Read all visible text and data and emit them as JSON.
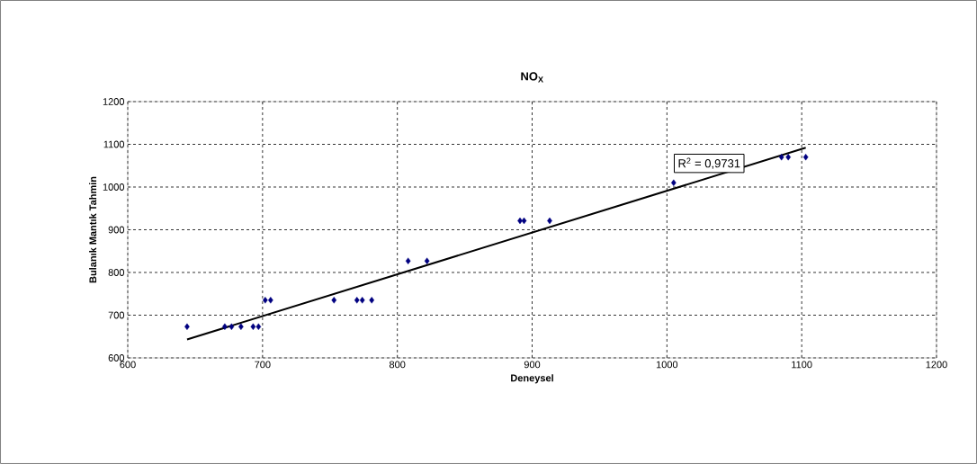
{
  "chart_data": {
    "type": "scatter",
    "title": "NO$_{X}$",
    "xlabel": "Deneysel",
    "ylabel": "Bulanık Mantık Tahmin",
    "annotations": [
      "R$^{2}$ = 0,9731"
    ],
    "xlim": [
      600,
      1200
    ],
    "xticks": [
      600,
      700,
      800,
      900,
      1000,
      1100,
      1200
    ],
    "ylim": [
      600,
      1200
    ],
    "yticks": [
      600,
      700,
      800,
      900,
      1000,
      1100,
      1200
    ],
    "grid": true,
    "marker": "diamond",
    "series": [
      {
        "color": "#000080",
        "x": [
          644,
          672,
          677,
          684,
          693,
          697,
          702,
          706,
          753,
          770,
          774,
          781,
          808,
          822,
          891,
          894,
          913,
          1005,
          1085,
          1090,
          1103
        ],
        "values": [
          673,
          673,
          673,
          673,
          673,
          673,
          735,
          735,
          735,
          735,
          735,
          735,
          827,
          827,
          921,
          921,
          921,
          1010,
          1070,
          1070,
          1070
        ]
      },
      {
        "type": "line",
        "color": "#000000",
        "marker": "none",
        "x": [
          644,
          1103
        ],
        "values": [
          643,
          1092
        ]
      }
    ]
  }
}
